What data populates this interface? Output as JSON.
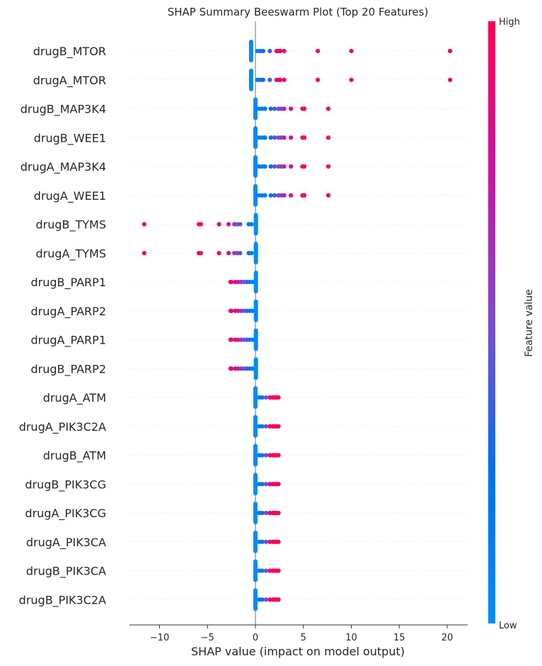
{
  "chart_data": {
    "type": "scatter",
    "title": "SHAP Summary Beeswarm Plot (Top 20 Features)",
    "xlabel": "SHAP value (impact on model output)",
    "xlim": [
      -13,
      22
    ],
    "xticks": [
      -10,
      -5,
      0,
      5,
      10,
      15,
      20
    ],
    "tick_labels": [
      "−10",
      "−5",
      "0",
      "5",
      "10",
      "15",
      "20"
    ],
    "colorbar": {
      "label": "Feature value",
      "high": "High",
      "low": "Low",
      "high_color": "#ff0052",
      "low_color": "#008bfb"
    },
    "features": [
      {
        "name": "drugB_MTOR",
        "zero": -0.45,
        "points": [
          [
            0.2,
            0.15
          ],
          [
            0.5,
            0.2
          ],
          [
            0.8,
            0.25
          ],
          [
            1.5,
            0.4
          ],
          [
            2.2,
            0.8
          ],
          [
            2.4,
            0.9
          ],
          [
            2.6,
            0.95
          ],
          [
            3.0,
            0.9
          ],
          [
            6.5,
            1.0
          ],
          [
            10.0,
            1.0
          ],
          [
            20.3,
            1.0
          ]
        ]
      },
      {
        "name": "drugA_MTOR",
        "zero": -0.45,
        "points": [
          [
            0.2,
            0.15
          ],
          [
            0.5,
            0.2
          ],
          [
            0.8,
            0.25
          ],
          [
            1.5,
            0.4
          ],
          [
            2.2,
            0.8
          ],
          [
            2.4,
            0.9
          ],
          [
            2.6,
            0.95
          ],
          [
            3.0,
            0.9
          ],
          [
            6.5,
            1.0
          ],
          [
            10.0,
            1.0
          ],
          [
            20.3,
            1.0
          ]
        ]
      },
      {
        "name": "drugB_MAP3K4",
        "zero": 0.0,
        "points": [
          [
            0.4,
            0.1
          ],
          [
            0.7,
            0.12
          ],
          [
            1.0,
            0.15
          ],
          [
            1.6,
            0.3
          ],
          [
            2.0,
            0.4
          ],
          [
            2.4,
            0.5
          ],
          [
            2.7,
            0.6
          ],
          [
            3.0,
            0.7
          ],
          [
            3.7,
            0.75
          ],
          [
            4.9,
            0.95
          ],
          [
            5.1,
            0.95
          ],
          [
            7.6,
            1.0
          ]
        ]
      },
      {
        "name": "drugB_WEE1",
        "zero": 0.0,
        "points": [
          [
            0.4,
            0.1
          ],
          [
            0.7,
            0.12
          ],
          [
            1.0,
            0.15
          ],
          [
            1.6,
            0.3
          ],
          [
            2.0,
            0.4
          ],
          [
            2.4,
            0.5
          ],
          [
            2.7,
            0.6
          ],
          [
            3.0,
            0.7
          ],
          [
            3.7,
            0.75
          ],
          [
            4.9,
            0.95
          ],
          [
            5.1,
            0.95
          ],
          [
            7.6,
            1.0
          ]
        ]
      },
      {
        "name": "drugA_MAP3K4",
        "zero": 0.0,
        "points": [
          [
            0.4,
            0.1
          ],
          [
            0.7,
            0.12
          ],
          [
            1.0,
            0.15
          ],
          [
            1.6,
            0.3
          ],
          [
            2.0,
            0.4
          ],
          [
            2.4,
            0.5
          ],
          [
            2.7,
            0.6
          ],
          [
            3.0,
            0.7
          ],
          [
            3.7,
            0.75
          ],
          [
            4.9,
            0.95
          ],
          [
            5.1,
            0.95
          ],
          [
            7.6,
            1.0
          ]
        ]
      },
      {
        "name": "drugA_WEE1",
        "zero": 0.0,
        "points": [
          [
            0.4,
            0.1
          ],
          [
            0.7,
            0.12
          ],
          [
            1.0,
            0.15
          ],
          [
            1.6,
            0.3
          ],
          [
            2.0,
            0.4
          ],
          [
            2.4,
            0.5
          ],
          [
            2.7,
            0.6
          ],
          [
            3.0,
            0.7
          ],
          [
            3.7,
            0.75
          ],
          [
            4.9,
            0.95
          ],
          [
            5.1,
            0.95
          ],
          [
            7.6,
            1.0
          ]
        ]
      },
      {
        "name": "drugB_TYMS",
        "zero": 0.05,
        "points": [
          [
            -11.6,
            1.0
          ],
          [
            -5.9,
            1.0
          ],
          [
            -5.7,
            1.0
          ],
          [
            -3.8,
            0.9
          ],
          [
            -2.8,
            0.8
          ],
          [
            -2.2,
            0.6
          ],
          [
            -1.9,
            0.5
          ],
          [
            -1.6,
            0.4
          ],
          [
            -0.7,
            0.2
          ],
          [
            -0.4,
            0.15
          ]
        ]
      },
      {
        "name": "drugA_TYMS",
        "zero": 0.05,
        "points": [
          [
            -11.6,
            1.0
          ],
          [
            -5.9,
            1.0
          ],
          [
            -5.7,
            1.0
          ],
          [
            -3.8,
            0.9
          ],
          [
            -2.8,
            0.8
          ],
          [
            -2.2,
            0.6
          ],
          [
            -1.9,
            0.5
          ],
          [
            -1.6,
            0.4
          ],
          [
            -0.7,
            0.2
          ],
          [
            -0.4,
            0.15
          ]
        ]
      },
      {
        "name": "drugB_PARP1",
        "zero": 0.05,
        "points": [
          [
            -2.6,
            0.95
          ],
          [
            -2.5,
            0.95
          ],
          [
            -2.1,
            0.8
          ],
          [
            -1.8,
            0.7
          ],
          [
            -1.5,
            0.6
          ],
          [
            -1.2,
            0.5
          ],
          [
            -0.9,
            0.35
          ],
          [
            -0.6,
            0.2
          ],
          [
            -0.3,
            0.12
          ]
        ]
      },
      {
        "name": "drugA_PARP2",
        "zero": 0.05,
        "points": [
          [
            -2.6,
            0.95
          ],
          [
            -2.5,
            0.95
          ],
          [
            -2.1,
            0.8
          ],
          [
            -1.8,
            0.7
          ],
          [
            -1.5,
            0.6
          ],
          [
            -1.2,
            0.5
          ],
          [
            -0.9,
            0.35
          ],
          [
            -0.6,
            0.2
          ],
          [
            -0.3,
            0.12
          ]
        ]
      },
      {
        "name": "drugA_PARP1",
        "zero": 0.05,
        "points": [
          [
            -2.6,
            0.95
          ],
          [
            -2.5,
            0.95
          ],
          [
            -2.1,
            0.8
          ],
          [
            -1.8,
            0.7
          ],
          [
            -1.5,
            0.6
          ],
          [
            -1.2,
            0.5
          ],
          [
            -0.9,
            0.35
          ],
          [
            -0.6,
            0.2
          ],
          [
            -0.3,
            0.12
          ]
        ]
      },
      {
        "name": "drugB_PARP2",
        "zero": 0.05,
        "points": [
          [
            -2.6,
            0.95
          ],
          [
            -2.5,
            0.95
          ],
          [
            -2.1,
            0.8
          ],
          [
            -1.8,
            0.7
          ],
          [
            -1.5,
            0.6
          ],
          [
            -1.2,
            0.5
          ],
          [
            -0.9,
            0.35
          ],
          [
            -0.6,
            0.2
          ],
          [
            -0.3,
            0.12
          ]
        ]
      },
      {
        "name": "drugA_ATM",
        "zero": 0.0,
        "points": [
          [
            0.4,
            0.15
          ],
          [
            0.7,
            0.2
          ],
          [
            1.1,
            0.5
          ],
          [
            1.5,
            0.85
          ],
          [
            1.8,
            0.95
          ],
          [
            2.0,
            0.95
          ],
          [
            2.2,
            1.0
          ],
          [
            2.4,
            1.0
          ]
        ]
      },
      {
        "name": "drugA_PIK3C2A",
        "zero": 0.0,
        "points": [
          [
            0.4,
            0.15
          ],
          [
            0.7,
            0.2
          ],
          [
            1.1,
            0.5
          ],
          [
            1.5,
            0.85
          ],
          [
            1.8,
            0.95
          ],
          [
            2.0,
            0.95
          ],
          [
            2.2,
            1.0
          ],
          [
            2.4,
            1.0
          ]
        ]
      },
      {
        "name": "drugB_ATM",
        "zero": 0.0,
        "points": [
          [
            0.4,
            0.15
          ],
          [
            0.7,
            0.2
          ],
          [
            1.1,
            0.5
          ],
          [
            1.5,
            0.85
          ],
          [
            1.8,
            0.95
          ],
          [
            2.0,
            0.95
          ],
          [
            2.2,
            1.0
          ],
          [
            2.4,
            1.0
          ]
        ]
      },
      {
        "name": "drugB_PIK3CG",
        "zero": 0.0,
        "points": [
          [
            0.4,
            0.15
          ],
          [
            0.7,
            0.2
          ],
          [
            1.1,
            0.5
          ],
          [
            1.5,
            0.85
          ],
          [
            1.8,
            0.95
          ],
          [
            2.0,
            0.95
          ],
          [
            2.2,
            1.0
          ],
          [
            2.4,
            1.0
          ]
        ]
      },
      {
        "name": "drugA_PIK3CG",
        "zero": 0.0,
        "points": [
          [
            0.4,
            0.15
          ],
          [
            0.7,
            0.2
          ],
          [
            1.1,
            0.5
          ],
          [
            1.5,
            0.85
          ],
          [
            1.8,
            0.95
          ],
          [
            2.0,
            0.95
          ],
          [
            2.2,
            1.0
          ],
          [
            2.4,
            1.0
          ]
        ]
      },
      {
        "name": "drugA_PIK3CA",
        "zero": 0.0,
        "points": [
          [
            0.4,
            0.15
          ],
          [
            0.7,
            0.2
          ],
          [
            1.1,
            0.5
          ],
          [
            1.5,
            0.85
          ],
          [
            1.8,
            0.95
          ],
          [
            2.0,
            0.95
          ],
          [
            2.2,
            1.0
          ],
          [
            2.4,
            1.0
          ]
        ]
      },
      {
        "name": "drugB_PIK3CA",
        "zero": 0.0,
        "points": [
          [
            0.4,
            0.15
          ],
          [
            0.7,
            0.2
          ],
          [
            1.1,
            0.5
          ],
          [
            1.5,
            0.85
          ],
          [
            1.8,
            0.95
          ],
          [
            2.0,
            0.95
          ],
          [
            2.2,
            1.0
          ],
          [
            2.4,
            1.0
          ]
        ]
      },
      {
        "name": "drugB_PIK3C2A",
        "zero": 0.0,
        "points": [
          [
            0.4,
            0.15
          ],
          [
            0.7,
            0.2
          ],
          [
            1.1,
            0.5
          ],
          [
            1.5,
            0.85
          ],
          [
            1.8,
            0.95
          ],
          [
            2.0,
            0.95
          ],
          [
            2.2,
            1.0
          ],
          [
            2.4,
            1.0
          ]
        ]
      }
    ]
  }
}
